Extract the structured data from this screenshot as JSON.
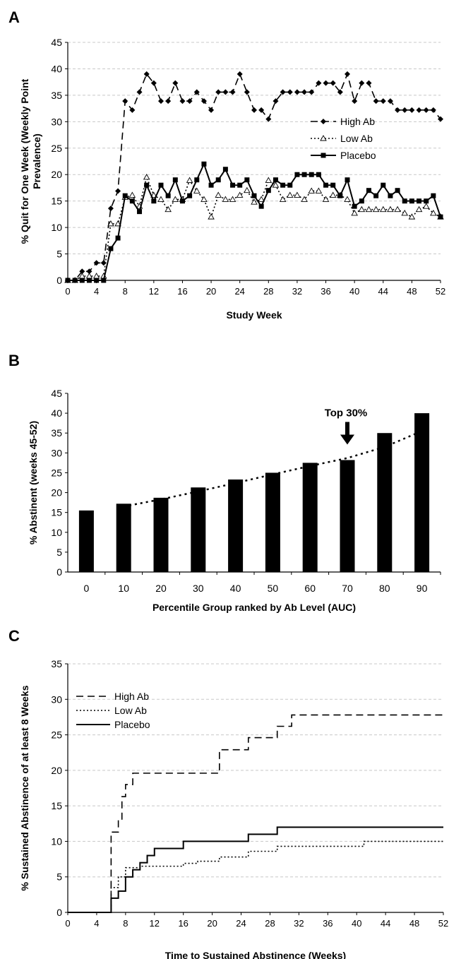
{
  "panels": [
    {
      "letter": "A"
    },
    {
      "letter": "B"
    },
    {
      "letter": "C"
    }
  ],
  "chart_data": [
    {
      "type": "line",
      "ylabel": "% Quit for One Week (Weekly Point Prevalence)",
      "xlabel": "Study Week",
      "xlim": [
        0,
        52
      ],
      "ylim": [
        0,
        45
      ],
      "xticks": [
        0,
        4,
        8,
        12,
        16,
        20,
        24,
        28,
        32,
        36,
        40,
        44,
        48,
        52
      ],
      "yticks": [
        0,
        5,
        10,
        15,
        20,
        25,
        30,
        35,
        40,
        45
      ],
      "grid": "horizontal dashed",
      "legend_position": "right",
      "series": [
        {
          "name": "High Ab",
          "marker": "diamond",
          "line": "dashed",
          "x": [
            0,
            1,
            2,
            3,
            4,
            5,
            6,
            7,
            8,
            9,
            10,
            11,
            12,
            13,
            14,
            15,
            16,
            17,
            18,
            19,
            20,
            21,
            22,
            23,
            24,
            25,
            26,
            27,
            28,
            29,
            30,
            31,
            32,
            33,
            34,
            35,
            36,
            37,
            38,
            39,
            40,
            41,
            42,
            43,
            44,
            45,
            46,
            47,
            48,
            49,
            50,
            51,
            52
          ],
          "y": [
            0,
            0,
            1.7,
            1.7,
            3.3,
            3.3,
            13.6,
            16.9,
            33.9,
            32.2,
            35.6,
            39.0,
            37.3,
            33.9,
            33.9,
            37.3,
            33.9,
            33.9,
            35.6,
            33.9,
            32.2,
            35.6,
            35.6,
            35.6,
            39.0,
            35.6,
            32.2,
            32.2,
            30.5,
            33.9,
            35.6,
            35.6,
            35.6,
            35.6,
            35.6,
            37.3,
            37.3,
            37.3,
            35.6,
            39.0,
            33.9,
            37.3,
            37.3,
            33.9,
            33.9,
            33.9,
            32.2,
            32.2,
            32.2,
            32.2,
            32.2,
            32.2,
            30.5
          ]
        },
        {
          "name": "Low Ab",
          "marker": "triangle-open",
          "line": "dotted",
          "x": [
            0,
            1,
            2,
            3,
            4,
            5,
            6,
            7,
            8,
            9,
            10,
            11,
            12,
            13,
            14,
            15,
            16,
            17,
            18,
            19,
            20,
            21,
            22,
            23,
            24,
            25,
            26,
            27,
            28,
            29,
            30,
            31,
            32,
            33,
            34,
            35,
            36,
            37,
            38,
            39,
            40,
            41,
            42,
            43,
            44,
            45,
            46,
            47,
            48,
            49,
            50,
            51,
            52
          ],
          "y": [
            0,
            0,
            0.8,
            0.8,
            0.8,
            0.8,
            10.7,
            10.7,
            15.7,
            16.1,
            14.0,
            19.5,
            16.1,
            15.3,
            13.4,
            15.3,
            15.3,
            18.9,
            16.9,
            15.3,
            12.0,
            16.1,
            15.3,
            15.3,
            16.1,
            17.0,
            14.8,
            15.3,
            18.9,
            18.0,
            15.3,
            16.1,
            16.1,
            15.3,
            16.9,
            16.9,
            15.3,
            16.1,
            16.1,
            15.3,
            12.7,
            13.4,
            13.4,
            13.4,
            13.4,
            13.4,
            13.4,
            12.7,
            12.0,
            13.4,
            14.0,
            12.7,
            12.0
          ]
        },
        {
          "name": "Placebo",
          "marker": "square",
          "line": "solid",
          "x": [
            0,
            1,
            2,
            3,
            4,
            5,
            6,
            7,
            8,
            9,
            10,
            11,
            12,
            13,
            14,
            15,
            16,
            17,
            18,
            19,
            20,
            21,
            22,
            23,
            24,
            25,
            26,
            27,
            28,
            29,
            30,
            31,
            32,
            33,
            34,
            35,
            36,
            37,
            38,
            39,
            40,
            41,
            42,
            43,
            44,
            45,
            46,
            47,
            48,
            49,
            50,
            51,
            52
          ],
          "y": [
            0,
            0,
            0,
            0,
            0,
            0,
            6,
            8,
            16,
            15,
            13,
            18,
            15,
            18,
            16,
            19,
            15,
            16,
            19,
            22,
            18,
            19,
            21,
            18,
            18,
            19,
            16,
            14,
            17,
            19,
            18,
            18,
            20,
            20,
            20,
            20,
            18,
            18,
            16,
            19,
            14,
            15,
            17,
            16,
            18,
            16,
            17,
            15,
            15,
            15,
            15,
            16,
            12
          ]
        }
      ]
    },
    {
      "type": "bar",
      "ylabel": "% Abstinent (weeks 45-52)",
      "xlabel": "Percentile Group ranked by Ab Level (AUC)",
      "categories": [
        "0",
        "10",
        "20",
        "30",
        "40",
        "50",
        "60",
        "70",
        "80",
        "90"
      ],
      "values": [
        15.5,
        17.2,
        18.7,
        21.3,
        23.3,
        25.0,
        27.5,
        28.2,
        35.0,
        40.0
      ],
      "ylim": [
        0,
        45
      ],
      "yticks": [
        0,
        5,
        10,
        15,
        20,
        25,
        30,
        35,
        40,
        45
      ],
      "trendline": {
        "style": "dotted",
        "from_category": "10",
        "values": [
          16.5,
          18.3,
          20.3,
          22.4,
          24.6,
          26.7,
          28.7,
          31.5,
          35.5
        ]
      },
      "annotation": {
        "text": "Top 30%",
        "category": "70",
        "arrow": "down"
      }
    },
    {
      "type": "line",
      "subtype": "step",
      "ylabel": "% Sustained Abstinence of at least 8 Weeks",
      "xlabel": "Time to Sustained Abstinence (Weeks)",
      "xlim": [
        0,
        52
      ],
      "ylim": [
        0,
        35
      ],
      "xticks": [
        0,
        4,
        8,
        12,
        16,
        20,
        24,
        28,
        32,
        36,
        40,
        44,
        48,
        52
      ],
      "yticks": [
        0,
        5,
        10,
        15,
        20,
        25,
        30,
        35
      ],
      "grid": "horizontal dashed",
      "legend_position": "top-left",
      "series": [
        {
          "name": "High Ab",
          "line": "dashed",
          "x": [
            0,
            6,
            7,
            7.5,
            8,
            9,
            10.5,
            21,
            25,
            29,
            31,
            35,
            52
          ],
          "y": [
            0,
            11.3,
            13.0,
            16.3,
            18.0,
            19.6,
            19.6,
            22.9,
            24.6,
            26.2,
            27.8,
            27.8,
            27.8
          ]
        },
        {
          "name": "Low Ab",
          "line": "dotted",
          "x": [
            0,
            6,
            7,
            8,
            9,
            10,
            11,
            16,
            18,
            21,
            25,
            29,
            41,
            52
          ],
          "y": [
            0,
            3.5,
            5.0,
            6.3,
            6.3,
            6.5,
            6.5,
            6.9,
            7.2,
            7.8,
            8.6,
            9.3,
            10.0,
            10.0
          ]
        },
        {
          "name": "Placebo",
          "line": "solid",
          "x": [
            0,
            6,
            7,
            8,
            9,
            10,
            11,
            12,
            16,
            25,
            29,
            52
          ],
          "y": [
            0,
            2,
            3,
            5,
            6,
            7,
            8,
            9,
            10,
            11,
            12,
            12
          ]
        }
      ]
    }
  ]
}
